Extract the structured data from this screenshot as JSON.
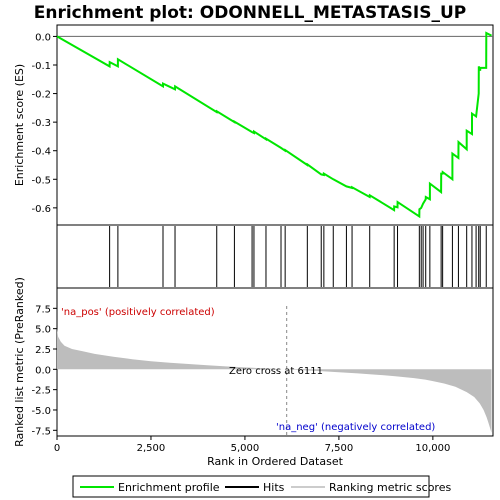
{
  "chart_data": {
    "type": "line",
    "title": "Enrichment plot: ODONNELL_METASTASIS_UP",
    "xlabel": "Rank in Ordered Dataset",
    "top_ylabel": "Enrichment score (ES)",
    "bottom_ylabel": "Ranked list metric (PreRanked)",
    "xlim": [
      0,
      11600
    ],
    "x_ticks": [
      0,
      2500,
      5000,
      7500,
      10000
    ],
    "x_tick_labels": [
      "0",
      "2,500",
      "5,000",
      "7,500",
      "10,000"
    ],
    "es_ylim": [
      -0.66,
      0.04
    ],
    "es_ticks": [
      0.0,
      -0.1,
      -0.2,
      -0.3,
      -0.4,
      -0.5,
      -0.6
    ],
    "es_tick_labels": [
      "0.0",
      "-0.1",
      "-0.2",
      "-0.3",
      "-0.4",
      "-0.5",
      "-0.6"
    ],
    "metric_ylim": [
      -8.2,
      10.0
    ],
    "metric_ticks": [
      7.5,
      5.0,
      2.5,
      0.0,
      -2.5,
      -5.0,
      -7.5
    ],
    "metric_tick_labels": [
      "7.5",
      "5.0",
      "2.5",
      "0.0",
      "-2.5",
      "-5.0",
      "-7.5"
    ],
    "zero_cross_label": "Zero cross at 6111",
    "zero_cross_rank": 6111,
    "pos_label": "'na_pos' (positively correlated)",
    "neg_label": "'na_neg' (negatively correlated)",
    "hits": [
      1400,
      1620,
      2820,
      3140,
      4250,
      4720,
      5190,
      5240,
      5560,
      5960,
      6070,
      6660,
      7030,
      7100,
      7350,
      7700,
      7850,
      8320,
      8970,
      9060,
      9640,
      9690,
      9740,
      9810,
      9920,
      10220,
      10260,
      10520,
      10680,
      10900,
      11040,
      11150,
      11220,
      11260,
      11420
    ],
    "es_curve": {
      "x": [
        0,
        1400,
        1401,
        1620,
        1621,
        2820,
        2821,
        3140,
        3141,
        4250,
        4251,
        4720,
        4721,
        5190,
        5240,
        5241,
        5560,
        5561,
        5960,
        6070,
        6071,
        6660,
        6661,
        7030,
        7100,
        7101,
        7350,
        7700,
        7850,
        7851,
        8320,
        8321,
        8970,
        8971,
        9060,
        9061,
        9640,
        9641,
        9690,
        9740,
        9810,
        9811,
        9920,
        9921,
        10220,
        10221,
        10260,
        10261,
        10520,
        10521,
        10680,
        10681,
        10900,
        10901,
        11040,
        11041,
        11150,
        11220,
        11221,
        11260,
        11261,
        11420,
        11421,
        11560
      ],
      "y": [
        0.0,
        -0.105,
        -0.09,
        -0.105,
        -0.08,
        -0.175,
        -0.165,
        -0.185,
        -0.175,
        -0.265,
        -0.262,
        -0.3,
        -0.298,
        -0.335,
        -0.338,
        -0.333,
        -0.36,
        -0.358,
        -0.39,
        -0.4,
        -0.398,
        -0.45,
        -0.448,
        -0.483,
        -0.485,
        -0.48,
        -0.5,
        -0.525,
        -0.53,
        -0.528,
        -0.562,
        -0.556,
        -0.608,
        -0.595,
        -0.598,
        -0.58,
        -0.63,
        -0.605,
        -0.6,
        -0.585,
        -0.57,
        -0.562,
        -0.57,
        -0.515,
        -0.545,
        -0.48,
        -0.48,
        -0.475,
        -0.5,
        -0.41,
        -0.425,
        -0.37,
        -0.395,
        -0.33,
        -0.342,
        -0.27,
        -0.28,
        -0.2,
        -0.105,
        -0.12,
        -0.11,
        -0.11,
        0.012,
        0.003
      ]
    },
    "metric_curve": {
      "x": [
        0,
        30,
        100,
        200,
        400,
        700,
        1000,
        1500,
        2000,
        2500,
        3000,
        3500,
        4000,
        4500,
        5000,
        5500,
        6000,
        6111,
        6500,
        7000,
        7500,
        8000,
        8500,
        9000,
        9500,
        9800,
        10000,
        10300,
        10600,
        10900,
        11100,
        11250,
        11350,
        11430,
        11480,
        11520,
        11560
      ],
      "y": [
        5.0,
        4.0,
        3.4,
        2.9,
        2.5,
        2.2,
        1.9,
        1.55,
        1.25,
        1.0,
        0.82,
        0.65,
        0.5,
        0.36,
        0.23,
        0.12,
        0.02,
        0.0,
        -0.1,
        -0.22,
        -0.36,
        -0.5,
        -0.66,
        -0.85,
        -1.08,
        -1.27,
        -1.45,
        -1.75,
        -2.15,
        -2.8,
        -3.4,
        -4.2,
        -5.0,
        -5.9,
        -6.6,
        -7.2,
        -7.8
      ]
    },
    "heatmap_colors": [
      "#e03a3a",
      "#ee4d4d",
      "#f46262",
      "#fb8080",
      "#fdb4c8",
      "#fdd6e8",
      "#e6e0f6",
      "#d3d3f7",
      "#b4b6f2",
      "#8c8cf0",
      "#5c5ce6",
      "#3a3ad8",
      "#2020c8"
    ],
    "colors": {
      "es_line": "#00e600",
      "hit": "#000000",
      "metric_fill": "#bdbdbd",
      "pos_label": "#cc0000",
      "neg_label": "#0000cc",
      "zero_line": "#888888"
    },
    "legend": [
      {
        "label": "Enrichment profile",
        "icon": "green-line"
      },
      {
        "label": "Hits",
        "icon": "black-tick"
      },
      {
        "label": "Ranking metric scores",
        "icon": "gray-line"
      }
    ]
  }
}
